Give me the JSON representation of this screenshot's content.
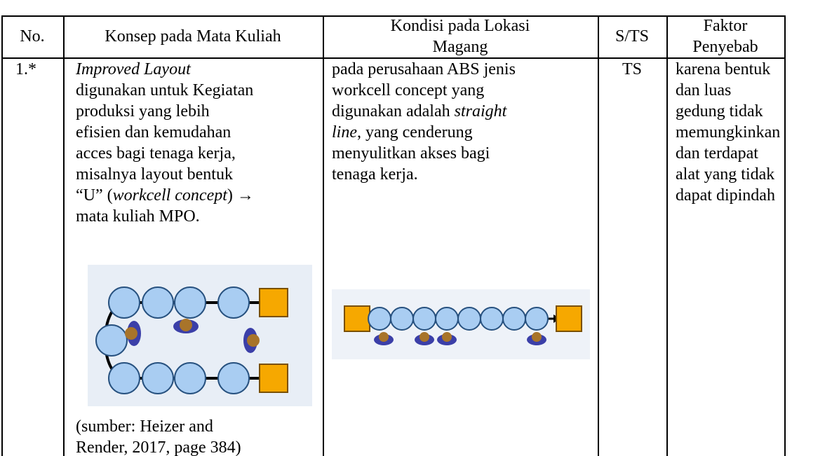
{
  "header": {
    "cells": [
      [
        "No."
      ],
      [
        "Konsep pada Mata Kuliah"
      ],
      [
        "Kondisi pada Lokasi",
        "Magang"
      ],
      [
        "S/TS"
      ],
      [
        "Faktor",
        "Penyebab"
      ]
    ]
  },
  "table": {
    "rows": [
      {
        "cells": [
          {
            "lines": [
              [
                "1.*"
              ]
            ]
          },
          {
            "lines": [
              [
                {
                  "text": "Improved Layout",
                  "italic": true
                }
              ],
              [
                "digunakan untuk Kegiatan"
              ],
              [
                "produksi yang lebih"
              ],
              [
                "efisien dan kemudahan"
              ],
              [
                "acces bagi tenaga kerja,"
              ],
              [
                "misalnya layout bentuk"
              ],
              [
                "“U” (",
                {
                  "text": "workcell concept",
                  "italic": true
                },
                ") →"
              ],
              [
                "mata kuliah MPO."
              ]
            ],
            "caption": [
              [
                "(sumber: Heizer and"
              ],
              [
                "Render, 2017, page 384)"
              ]
            ]
          },
          {
            "lines": [
              [
                "pada perusahaan ABS jenis"
              ],
              [
                "workcell concept yang"
              ],
              [
                "digunakan adalah ",
                {
                  "text": "straight",
                  "italic": true
                }
              ],
              [
                {
                  "text": "line",
                  "italic": true
                },
                ", yang cenderung"
              ],
              [
                "menyulitkan akses bagi"
              ],
              [
                "tenaga kerja."
              ]
            ]
          },
          {
            "lines": [
              [
                "TS"
              ]
            ]
          },
          {
            "lines": [
              [
                "karena bentuk"
              ],
              [
                "dan luas"
              ],
              [
                "gedung tidak"
              ],
              [
                "memungkinkan"
              ],
              [
                "dan terdapat"
              ],
              [
                "alat yang tidak"
              ],
              [
                "dapat dipindah"
              ]
            ]
          }
        ]
      }
    ]
  }
}
